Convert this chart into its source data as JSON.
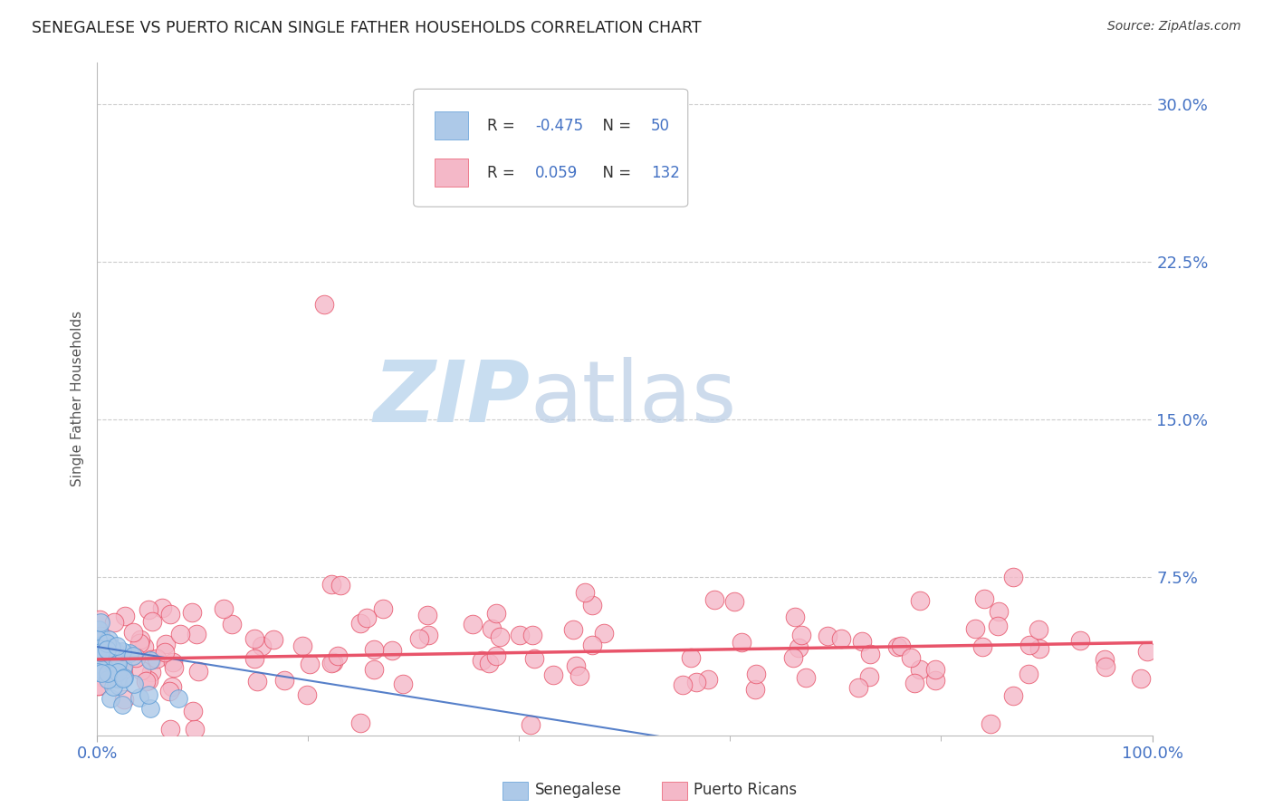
{
  "title": "SENEGALESE VS PUERTO RICAN SINGLE FATHER HOUSEHOLDS CORRELATION CHART",
  "source": "Source: ZipAtlas.com",
  "ylabel": "Single Father Households",
  "xlim": [
    0.0,
    100.0
  ],
  "ylim": [
    0.0,
    32.0
  ],
  "ytick_vals": [
    7.5,
    15.0,
    22.5,
    30.0
  ],
  "ytick_labels": [
    "7.5%",
    "15.0%",
    "22.5%",
    "30.0%"
  ],
  "xtick_vals": [
    0.0,
    100.0
  ],
  "xtick_labels": [
    "0.0%",
    "100.0%"
  ],
  "title_color": "#222222",
  "source_color": "#444444",
  "axis_tick_color": "#4472c4",
  "background_color": "#ffffff",
  "grid_color": "#cccccc",
  "watermark_zip": "ZIP",
  "watermark_atlas": "atlas",
  "senegalese_color": "#adc9e8",
  "senegalese_edge_color": "#5b9bd5",
  "puerto_rican_color": "#f4b8c8",
  "puerto_rican_edge_color": "#e8546a",
  "senegalese_line_color": "#4472c4",
  "puerto_rican_line_color": "#e8546a",
  "legend_r1": "-0.475",
  "legend_n1": "50",
  "legend_r2": "0.059",
  "legend_n2": "132",
  "legend_color": "#4472c4"
}
